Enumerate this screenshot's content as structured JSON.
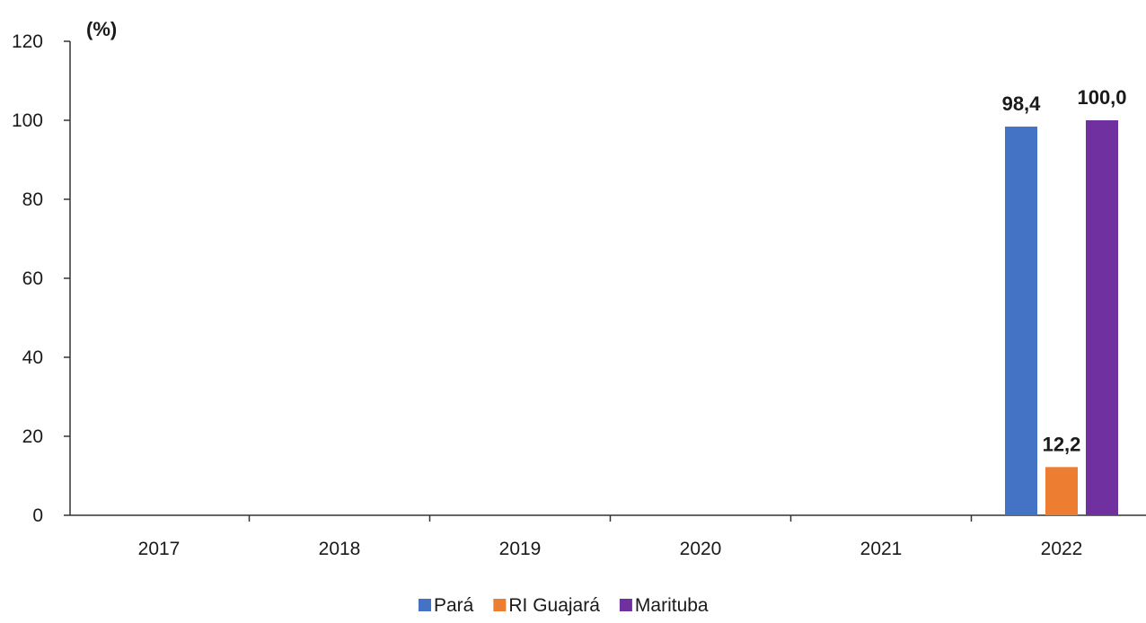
{
  "chart_data": {
    "type": "bar",
    "title": "",
    "xlabel": "",
    "ylabel": "(%)",
    "ylim": [
      0,
      120
    ],
    "yticks": [
      "0",
      "20",
      "40",
      "60",
      "80",
      "100",
      "120"
    ],
    "categories": [
      "2017",
      "2018",
      "2019",
      "2020",
      "2021",
      "2022"
    ],
    "series": [
      {
        "name": "Pará",
        "color": "#4472c4",
        "values": [
          null,
          null,
          null,
          null,
          null,
          98.4
        ],
        "labels": [
          "",
          "",
          "",
          "",
          "",
          "98,4"
        ]
      },
      {
        "name": "RI Guajará",
        "color": "#ed7d31",
        "values": [
          null,
          null,
          null,
          null,
          null,
          12.2
        ],
        "labels": [
          "",
          "",
          "",
          "",
          "",
          "12,2"
        ]
      },
      {
        "name": "Marituba",
        "color": "#7030a0",
        "values": [
          null,
          null,
          null,
          null,
          null,
          100.0
        ],
        "labels": [
          "",
          "",
          "",
          "",
          "",
          "100,0"
        ]
      }
    ],
    "grid": false,
    "legend_position": "bottom"
  }
}
